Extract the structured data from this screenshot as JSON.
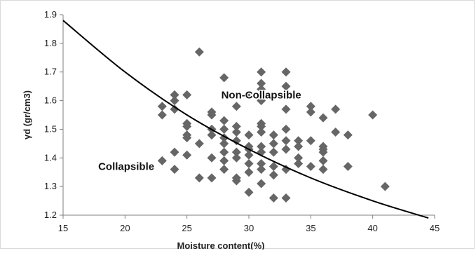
{
  "chart_data": {
    "type": "scatter",
    "title": "",
    "xlabel": "Moisture content(%)",
    "ylabel": "γd  (gr/cm3)",
    "xlim": [
      15,
      45
    ],
    "ylim": [
      1.2,
      1.9
    ],
    "x_ticks": [
      "15",
      "20",
      "25",
      "30",
      "35",
      "40",
      "45"
    ],
    "y_ticks": [
      "1.2",
      "1.3",
      "1.4",
      "1.5",
      "1.6",
      "1.7",
      "1.8",
      "1.9"
    ],
    "grid": false,
    "legend": "none",
    "marker_color": "#666666",
    "curve_color": "#000000",
    "annotations": [
      {
        "text": "Non-Collapsible",
        "x": 31,
        "y": 1.62
      },
      {
        "text": "Collapsible",
        "x": 20.1,
        "y": 1.37
      }
    ],
    "curve": {
      "name": "",
      "x": [
        15,
        20,
        25,
        30,
        35,
        40,
        44.5
      ],
      "y": [
        1.88,
        1.7,
        1.55,
        1.43,
        1.33,
        1.25,
        1.19
      ]
    },
    "series": [
      {
        "name": "",
        "points": [
          [
            23,
            1.58
          ],
          [
            23,
            1.55
          ],
          [
            23,
            1.39
          ],
          [
            24,
            1.62
          ],
          [
            24,
            1.6
          ],
          [
            24,
            1.57
          ],
          [
            24,
            1.42
          ],
          [
            24,
            1.36
          ],
          [
            25,
            1.62
          ],
          [
            25,
            1.52
          ],
          [
            25,
            1.51
          ],
          [
            25,
            1.48
          ],
          [
            25,
            1.47
          ],
          [
            25,
            1.41
          ],
          [
            26,
            1.77
          ],
          [
            26,
            1.45
          ],
          [
            26,
            1.33
          ],
          [
            27,
            1.56
          ],
          [
            27,
            1.55
          ],
          [
            27,
            1.5
          ],
          [
            27,
            1.48
          ],
          [
            27,
            1.4
          ],
          [
            27,
            1.33
          ],
          [
            28,
            1.68
          ],
          [
            28,
            1.53
          ],
          [
            28,
            1.5
          ],
          [
            28,
            1.47
          ],
          [
            28,
            1.45
          ],
          [
            28,
            1.42
          ],
          [
            28,
            1.39
          ],
          [
            28,
            1.36
          ],
          [
            29,
            1.58
          ],
          [
            29,
            1.51
          ],
          [
            29,
            1.49
          ],
          [
            29,
            1.46
          ],
          [
            29,
            1.42
          ],
          [
            29,
            1.4
          ],
          [
            29,
            1.33
          ],
          [
            29,
            1.32
          ],
          [
            30,
            1.62
          ],
          [
            30,
            1.48
          ],
          [
            30,
            1.44
          ],
          [
            30,
            1.43
          ],
          [
            30,
            1.41
          ],
          [
            30,
            1.38
          ],
          [
            30,
            1.35
          ],
          [
            30,
            1.28
          ],
          [
            31,
            1.7
          ],
          [
            31,
            1.66
          ],
          [
            31,
            1.64
          ],
          [
            31,
            1.6
          ],
          [
            31,
            1.52
          ],
          [
            31,
            1.51
          ],
          [
            31,
            1.49
          ],
          [
            31,
            1.44
          ],
          [
            31,
            1.42
          ],
          [
            31,
            1.38
          ],
          [
            31,
            1.36
          ],
          [
            31,
            1.31
          ],
          [
            32,
            1.48
          ],
          [
            32,
            1.45
          ],
          [
            32,
            1.42
          ],
          [
            32,
            1.37
          ],
          [
            32,
            1.34
          ],
          [
            32,
            1.26
          ],
          [
            33,
            1.7
          ],
          [
            33,
            1.65
          ],
          [
            33,
            1.57
          ],
          [
            33,
            1.5
          ],
          [
            33,
            1.46
          ],
          [
            33,
            1.43
          ],
          [
            33,
            1.36
          ],
          [
            33,
            1.26
          ],
          [
            34,
            1.46
          ],
          [
            34,
            1.44
          ],
          [
            34,
            1.4
          ],
          [
            34,
            1.38
          ],
          [
            35,
            1.58
          ],
          [
            35,
            1.56
          ],
          [
            35,
            1.46
          ],
          [
            35,
            1.37
          ],
          [
            36,
            1.54
          ],
          [
            36,
            1.44
          ],
          [
            36,
            1.43
          ],
          [
            36,
            1.42
          ],
          [
            36,
            1.39
          ],
          [
            36,
            1.36
          ],
          [
            37,
            1.57
          ],
          [
            37,
            1.49
          ],
          [
            38,
            1.48
          ],
          [
            38,
            1.37
          ],
          [
            40,
            1.55
          ],
          [
            41,
            1.3
          ]
        ]
      }
    ]
  }
}
